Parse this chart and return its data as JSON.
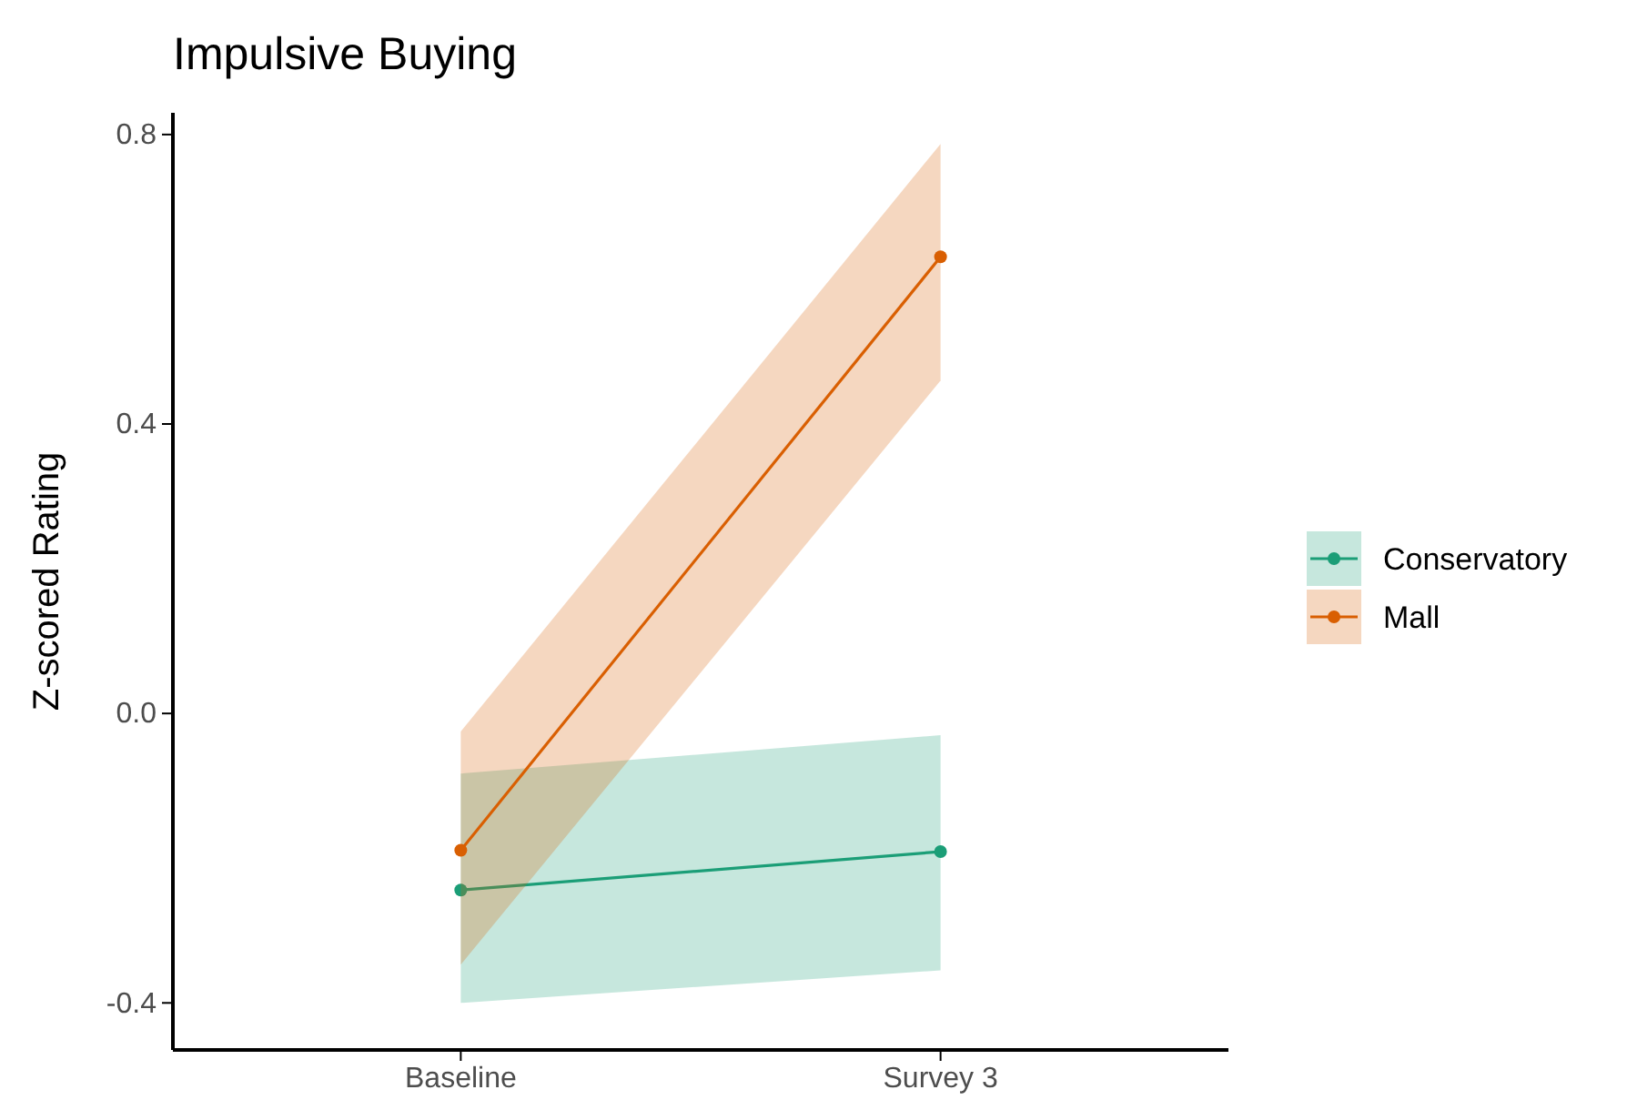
{
  "chart_data": {
    "type": "line",
    "title": "Impulsive Buying",
    "ylabel": "Z-scored Rating",
    "categories": [
      "Baseline",
      "Survey 3"
    ],
    "series": [
      {
        "name": "Conservatory",
        "color": "#1b9e77",
        "values": [
          -0.244,
          -0.191
        ],
        "lower": [
          -0.4,
          -0.355
        ],
        "upper": [
          -0.083,
          -0.03
        ]
      },
      {
        "name": "Mall",
        "color": "#d95f02",
        "values": [
          -0.189,
          0.631
        ],
        "lower": [
          -0.347,
          0.46
        ],
        "upper": [
          -0.025,
          0.787
        ]
      }
    ],
    "ylim": [
      -0.465,
      0.83
    ],
    "yticks": [
      {
        "value": -0.4,
        "label": "-0.4"
      },
      {
        "value": 0,
        "label": "0.0"
      },
      {
        "value": 0.4,
        "label": "0.4"
      },
      {
        "value": 0.8,
        "label": "0.8"
      }
    ],
    "grid": false,
    "legend": "right",
    "marker": "circle",
    "line_style": "solid"
  }
}
